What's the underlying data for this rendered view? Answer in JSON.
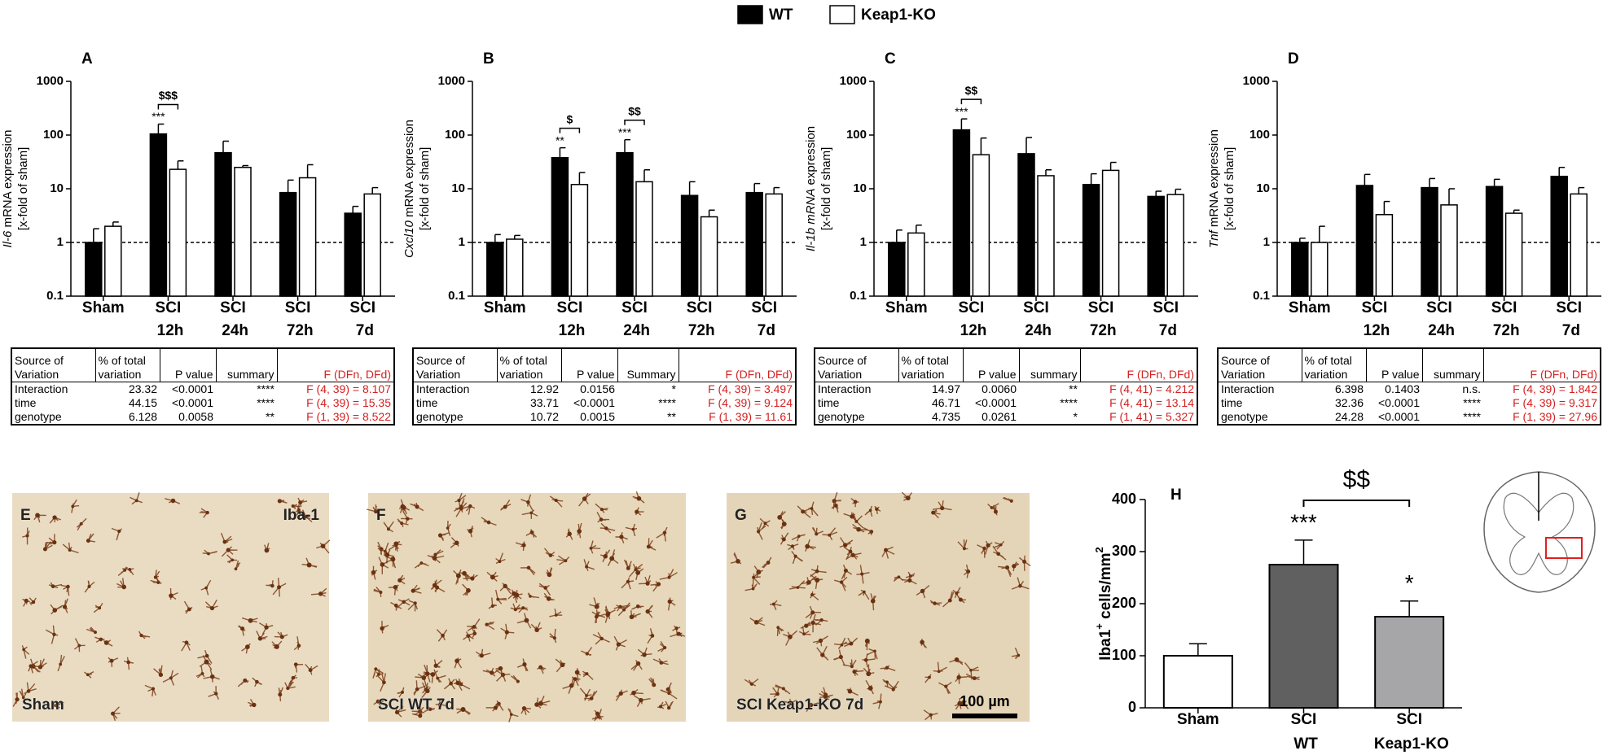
{
  "chart_data": [
    {
      "type": "bar",
      "label": "A",
      "yscale": "log",
      "ylabel_gene": "Il-6",
      "ylabel": " mRNA expression",
      "ylabel2": "[x-fold of sham]",
      "categories": [
        "Sham",
        "SCI 12h",
        "SCI 24h",
        "SCI 72h",
        "SCI 7d"
      ],
      "series": [
        {
          "name": "WT",
          "color": "#000000",
          "values": [
            1,
            105,
            47,
            8.5,
            3.5
          ],
          "errors": [
            0.8,
            55,
            30,
            6,
            1.2
          ],
          "stars": [
            null,
            "***",
            null,
            null,
            null
          ]
        },
        {
          "name": "Keap1-KO",
          "color": "#ffffff",
          "values": [
            2,
            23,
            25,
            16,
            8
          ],
          "errors": [
            0.4,
            10,
            2,
            12,
            2.5
          ]
        }
      ],
      "brackets": [
        null,
        "$$$",
        null,
        null,
        null
      ],
      "ylim": [
        0.1,
        1000
      ],
      "yticks": [
        0.1,
        1,
        10,
        100,
        1000
      ],
      "reference_line": 1,
      "table": {
        "header": [
          "Source of Variation",
          "% of total variation",
          "P value",
          "summary",
          "F (DFn, DFd)"
        ],
        "rows": [
          [
            "Interaction",
            23.32,
            "<0.0001",
            "****",
            "F (4, 39) = 8.107"
          ],
          [
            "time",
            44.15,
            "<0.0001",
            "****",
            "F (4, 39) = 15.35"
          ],
          [
            "genotype",
            6.128,
            "0.0058",
            "**",
            "F (1, 39) = 8.522"
          ]
        ]
      }
    },
    {
      "type": "bar",
      "label": "B",
      "yscale": "log",
      "ylabel_gene": "Cxcl10",
      "ylabel": " mRNA expression",
      "ylabel2": "[x-fold of sham]",
      "categories": [
        "Sham",
        "SCI 12h",
        "SCI 24h",
        "SCI 72h",
        "SCI 7d"
      ],
      "series": [
        {
          "name": "WT",
          "color": "#000000",
          "values": [
            1,
            38,
            47,
            7.5,
            8.5
          ],
          "errors": [
            0.4,
            20,
            35,
            6,
            4
          ],
          "stars": [
            null,
            "**",
            "***",
            null,
            null
          ]
        },
        {
          "name": "Keap1-KO",
          "color": "#ffffff",
          "values": [
            1.15,
            12,
            13.5,
            3,
            8
          ],
          "errors": [
            0.2,
            8,
            9,
            1,
            2.5
          ]
        }
      ],
      "brackets": [
        null,
        "$",
        "$$",
        null,
        null
      ],
      "ylim": [
        0.1,
        1000
      ],
      "yticks": [
        0.1,
        1,
        10,
        100,
        1000
      ],
      "reference_line": 1,
      "table": {
        "header": [
          "Source of Variation",
          "% of total variation",
          "P value",
          "Summary",
          "F (DFn, DFd)"
        ],
        "rows": [
          [
            "Interaction",
            12.92,
            "0.0156",
            "*",
            "F (4, 39) = 3.497"
          ],
          [
            "time",
            33.71,
            "<0.0001",
            "****",
            "F (4, 39) = 9.124"
          ],
          [
            "genotype",
            10.72,
            "0.0015",
            "**",
            "F (1, 39) = 11.61"
          ]
        ]
      }
    },
    {
      "type": "bar",
      "label": "C",
      "yscale": "log",
      "ylabel_gene": "Il-1b mRNA",
      "ylabel": " expression",
      "ylabel2": "[x-fold of sham]",
      "categories": [
        "Sham",
        "SCI 12h",
        "SCI 24h",
        "SCI 72h",
        "SCI 7d"
      ],
      "series": [
        {
          "name": "WT",
          "color": "#000000",
          "values": [
            1,
            125,
            45,
            12,
            7.2
          ],
          "errors": [
            0.7,
            75,
            45,
            7,
            1.8
          ],
          "stars": [
            null,
            "***",
            null,
            null,
            null
          ]
        },
        {
          "name": "Keap1-KO",
          "color": "#ffffff",
          "values": [
            1.5,
            43,
            17.5,
            22,
            7.8
          ],
          "errors": [
            0.6,
            45,
            5,
            9,
            2
          ]
        }
      ],
      "brackets": [
        null,
        "$$",
        null,
        null,
        null
      ],
      "ylim": [
        0.1,
        1000
      ],
      "yticks": [
        0.1,
        1,
        10,
        100,
        1000
      ],
      "reference_line": 1,
      "table": {
        "header": [
          "Source of Variation",
          "% of total variation",
          "P value",
          "summary",
          "F (DFn, DFd)"
        ],
        "rows": [
          [
            "Interaction",
            14.97,
            "0.0060",
            "**",
            "F (4, 41) = 4.212"
          ],
          [
            "time",
            46.71,
            "<0.0001",
            "****",
            "F (4, 41) = 13.14"
          ],
          [
            "genotype",
            4.735,
            "0.0261",
            "*",
            "F (1, 41) = 5.327"
          ]
        ]
      }
    },
    {
      "type": "bar",
      "label": "D",
      "yscale": "log",
      "ylabel_gene": "Tnf",
      "ylabel": " mRNA expression",
      "ylabel2": "[x-fold of sham]",
      "categories": [
        "Sham",
        "SCI 12h",
        "SCI 24h",
        "SCI 72h",
        "SCI 7d"
      ],
      "series": [
        {
          "name": "WT",
          "color": "#000000",
          "values": [
            1,
            11.5,
            10.5,
            11,
            17
          ],
          "errors": [
            0.2,
            7,
            5,
            4,
            8
          ]
        },
        {
          "name": "Keap1-KO",
          "color": "#ffffff",
          "values": [
            1,
            3.3,
            5,
            3.5,
            8
          ],
          "errors": [
            1,
            2.5,
            5,
            0.5,
            2.5
          ]
        }
      ],
      "ylim": [
        0.1,
        1000
      ],
      "yticks": [
        0.1,
        1,
        10,
        100,
        1000
      ],
      "reference_line": 1,
      "table": {
        "header": [
          "Source of Variation",
          "% of total variation",
          "P value",
          "summary",
          "F (DFn, DFd)"
        ],
        "rows": [
          [
            "Interaction",
            6.398,
            "0.1403",
            "n.s.",
            "F (4, 39) = 1.842"
          ],
          [
            "time",
            32.36,
            "<0.0001",
            "****",
            "F (4, 39) = 9.317"
          ],
          [
            "genotype",
            24.28,
            "<0.0001",
            "****",
            "F (1, 39) = 27.96"
          ]
        ]
      }
    },
    {
      "type": "bar",
      "label": "H",
      "yscale": "linear",
      "ylabel": {
        "text": "Iba1",
        "sup": "+",
        "text2": " cells/mm",
        "sup2": "2"
      },
      "categories": [
        "Sham",
        "SCI WT",
        "SCI Keap1-KO"
      ],
      "values": [
        100,
        275,
        175
      ],
      "errors": [
        23,
        47,
        30
      ],
      "colors": [
        "#ffffff",
        "#606060",
        "#a6a6a8"
      ],
      "stars": [
        null,
        "***",
        "*"
      ],
      "bracket_label": "$$",
      "ylim": [
        0,
        400
      ],
      "yticks": [
        0,
        100,
        200,
        300,
        400
      ]
    }
  ],
  "images": [
    {
      "label": "E",
      "marker": "Iba-1",
      "caption": "Sham"
    },
    {
      "label": "F",
      "caption": "SCI WT 7d"
    },
    {
      "label": "G",
      "caption": "SCI Keap1-KO 7d",
      "scale_bar": "100 µm"
    }
  ]
}
